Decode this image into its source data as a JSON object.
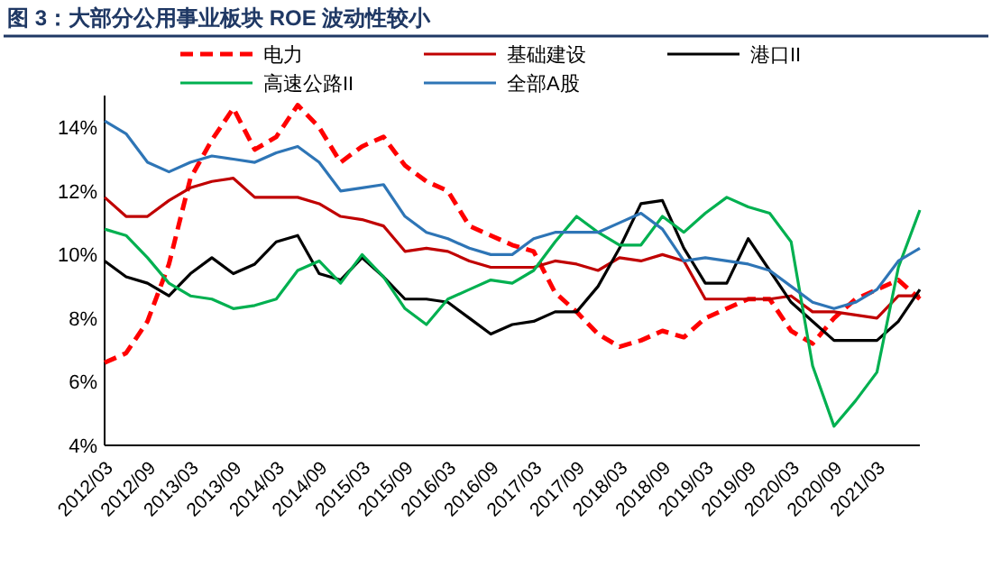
{
  "chart_data": {
    "type": "line",
    "title": "图 3：大部分公用事业板块 ROE 波动性较小",
    "categories": [
      "2012/03",
      null,
      "2012/09",
      null,
      "2013/03",
      null,
      "2013/09",
      null,
      "2014/03",
      null,
      "2014/09",
      null,
      "2015/03",
      null,
      "2015/09",
      null,
      "2016/03",
      null,
      "2016/09",
      null,
      "2017/03",
      null,
      "2017/09",
      null,
      "2018/03",
      null,
      "2018/09",
      null,
      "2019/03",
      null,
      "2019/09",
      null,
      "2020/03",
      null,
      "2020/09",
      null,
      "2021/03",
      null,
      null
    ],
    "series": [
      {
        "name": "电力",
        "color": "#ff0000",
        "line_style": "dashed",
        "values": [
          6.6,
          6.9,
          7.9,
          9.7,
          12.4,
          13.6,
          14.6,
          13.3,
          13.7,
          14.7,
          14.0,
          12.9,
          13.4,
          13.7,
          12.8,
          12.3,
          12.0,
          10.9,
          10.6,
          10.3,
          10.1,
          8.8,
          8.2,
          7.5,
          7.1,
          7.3,
          7.6,
          7.4,
          8.0,
          8.3,
          8.6,
          8.6,
          7.6,
          7.2,
          8.0,
          8.6,
          8.9,
          9.2,
          8.6
        ]
      },
      {
        "name": "基础建设",
        "color": "#c00000",
        "values": [
          11.8,
          11.2,
          11.2,
          11.7,
          12.1,
          12.3,
          12.4,
          11.8,
          11.8,
          11.8,
          11.6,
          11.2,
          11.1,
          10.9,
          10.1,
          10.2,
          10.1,
          9.8,
          9.6,
          9.6,
          9.6,
          9.8,
          9.7,
          9.5,
          9.9,
          9.8,
          10.0,
          9.8,
          8.6,
          8.6,
          8.6,
          8.6,
          8.7,
          8.2,
          8.2,
          8.1,
          8.0,
          8.7,
          8.7
        ]
      },
      {
        "name": "港口II",
        "color": "#000000",
        "values": [
          9.8,
          9.3,
          9.1,
          8.7,
          9.4,
          9.9,
          9.4,
          9.7,
          10.4,
          10.6,
          9.4,
          9.2,
          9.9,
          9.3,
          8.6,
          8.6,
          8.5,
          8.0,
          7.5,
          7.8,
          7.9,
          8.2,
          8.2,
          9.0,
          10.2,
          11.6,
          11.7,
          10.2,
          9.1,
          9.1,
          10.5,
          9.5,
          8.5,
          7.9,
          7.3,
          7.3,
          7.3,
          7.9,
          8.9
        ]
      },
      {
        "name": "高速公路II",
        "color": "#00b050",
        "values": [
          10.8,
          10.6,
          9.9,
          9.1,
          8.7,
          8.6,
          8.3,
          8.4,
          8.6,
          9.5,
          9.8,
          9.1,
          10.0,
          9.3,
          8.3,
          7.8,
          8.6,
          8.9,
          9.2,
          9.1,
          9.5,
          10.4,
          11.2,
          10.7,
          10.3,
          10.3,
          11.2,
          10.7,
          11.3,
          11.8,
          11.5,
          11.3,
          10.4,
          6.5,
          4.6,
          5.4,
          6.3,
          9.6,
          11.4
        ]
      },
      {
        "name": "全部A股",
        "color": "#2e75b6",
        "values": [
          14.2,
          13.8,
          12.9,
          12.6,
          12.9,
          13.1,
          13.0,
          12.9,
          13.2,
          13.4,
          12.9,
          12.0,
          12.1,
          12.2,
          11.2,
          10.7,
          10.5,
          10.2,
          10.0,
          10.0,
          10.5,
          10.7,
          10.7,
          10.7,
          11.0,
          11.3,
          10.8,
          9.8,
          9.9,
          9.8,
          9.7,
          9.5,
          9.0,
          8.5,
          8.3,
          8.5,
          8.9,
          9.8,
          10.2
        ]
      }
    ],
    "ylim": [
      4,
      15
    ],
    "yticks": [
      {
        "value": 4,
        "label": "4%"
      },
      {
        "value": 6,
        "label": "6%"
      },
      {
        "value": 8,
        "label": "8%"
      },
      {
        "value": 10,
        "label": "10%"
      },
      {
        "value": 12,
        "label": "12%"
      },
      {
        "value": 14,
        "label": "14%"
      }
    ],
    "legend": "top",
    "grid": false
  }
}
